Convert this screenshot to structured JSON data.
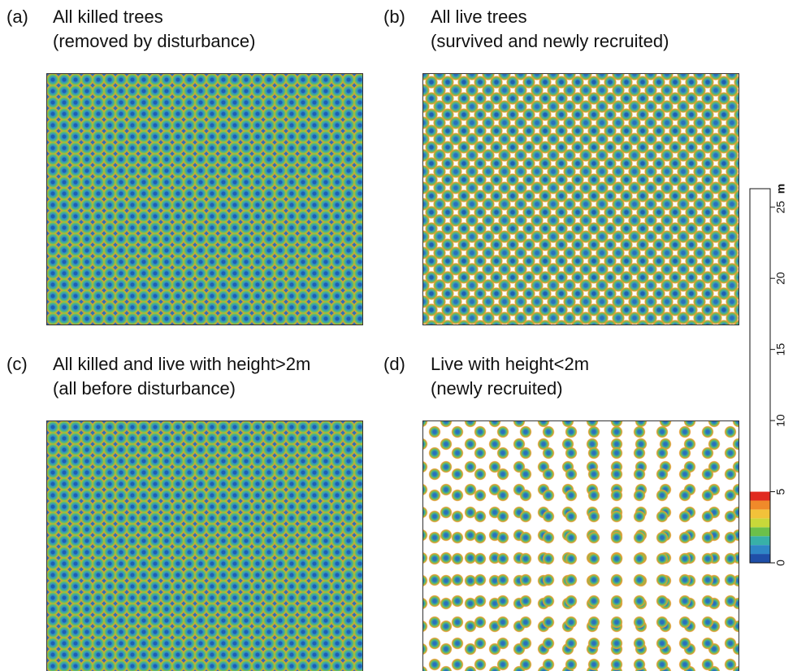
{
  "panels": [
    {
      "label": "(a)",
      "title": [
        "All killed trees",
        "(removed by disturbance)"
      ]
    },
    {
      "label": "(b)",
      "title": [
        "All live trees",
        "(survived and newly recruited)"
      ]
    },
    {
      "label": "(c)",
      "title": [
        "All killed and live with height>2m",
        "(all before disturbance)"
      ]
    },
    {
      "label": "(d)",
      "title": [
        "Live with height<2m",
        "(newly recruited)"
      ]
    }
  ],
  "chart_data": {
    "type": "colorbar",
    "unit": "m",
    "ylim": [
      0,
      26.3
    ],
    "yticks": [
      0,
      5,
      10,
      15,
      20,
      25
    ],
    "color_range": [
      0,
      5
    ],
    "colors": [
      "#1f4fa8",
      "#2f86c6",
      "#38b0a8",
      "#6cc04a",
      "#c8d83a",
      "#f2c23a",
      "#f08a2a",
      "#e02a20"
    ]
  }
}
